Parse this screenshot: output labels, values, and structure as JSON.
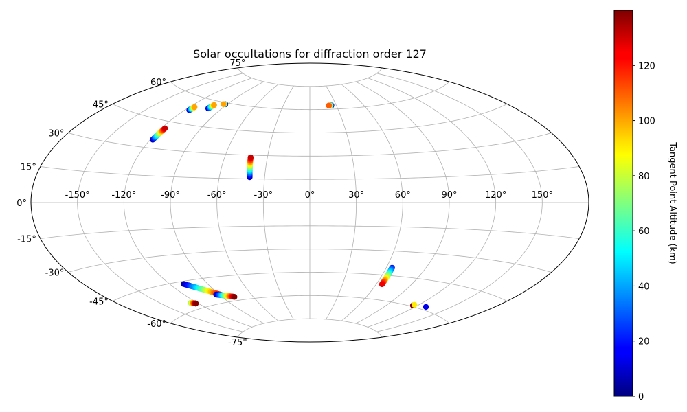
{
  "chart_data": {
    "type": "scatter",
    "projection": "aitoff",
    "title": "Solar occultations for diffraction order 127",
    "x_ticks": [
      "-150°",
      "-120°",
      "-90°",
      "-60°",
      "-30°",
      "0°",
      "30°",
      "60°",
      "90°",
      "120°",
      "150°"
    ],
    "x_tick_values": [
      -150,
      -120,
      -90,
      -60,
      -30,
      0,
      30,
      60,
      90,
      120,
      150
    ],
    "y_ticks": [
      "-75°",
      "-60°",
      "-45°",
      "-30°",
      "-15°",
      "0°",
      "15°",
      "30°",
      "45°",
      "60°",
      "75°"
    ],
    "y_tick_values": [
      -75,
      -60,
      -45,
      -30,
      -15,
      0,
      15,
      30,
      45,
      60,
      75
    ],
    "grid": true,
    "colorbar": {
      "label": "Tangent Point Altitude (km)",
      "min": 0,
      "max": 140,
      "ticks": [
        "0",
        "20",
        "40",
        "60",
        "80",
        "100",
        "120"
      ],
      "tick_values": [
        0,
        20,
        40,
        60,
        80,
        100,
        120
      ],
      "colormap": "jet"
    },
    "tracks": [
      {
        "lon": [
          -118.2,
          -117.3
        ],
        "lat": [
          34.5,
          41.2
        ],
        "alt": [
          5,
          130
        ]
      },
      {
        "lon": [
          -116.3,
          -115.6
        ],
        "lat": [
          52.5,
          54.5
        ],
        "alt": [
          5,
          100
        ]
      },
      {
        "lon": [
          -102.3,
          -101.2
        ],
        "lat": [
          55.3,
          57.6
        ],
        "alt": [
          5,
          100
        ]
      },
      {
        "lon": [
          -91.8,
          -93.8
        ],
        "lat": [
          59.1,
          59.0
        ],
        "alt": [
          5,
          100
        ]
      },
      {
        "lon": [
          -39.9,
          -41.8
        ],
        "lat": [
          16.1,
          28.6
        ],
        "alt": [
          5,
          130
        ]
      },
      {
        "lon": [
          24.5,
          21.6
        ],
        "lat": [
          62.4,
          62.4
        ],
        "alt": [
          5,
          110
        ]
      },
      {
        "lon": [
          -109.2,
          -88.9
        ],
        "lat": [
          -46.5,
          -55.4
        ],
        "alt": [
          5,
          130
        ]
      },
      {
        "lon": [
          -92.8,
          -78.4
        ],
        "lat": [
          -54.9,
          -57.7
        ],
        "alt": [
          5,
          139
        ]
      },
      {
        "lon": [
          -125.6,
          -122.2
        ],
        "lat": [
          -56.3,
          -57.2
        ],
        "alt": [
          70,
          139
        ]
      },
      {
        "lon": [
          64.4,
          65.0
        ],
        "lat": [
          -40.2,
          -50.6
        ],
        "alt": [
          20,
          125
        ]
      }
    ],
    "points": [
      {
        "lon": 115.7,
        "lat": -59.4,
        "alt": 140
      },
      {
        "lon": 115.9,
        "lat": -58.9,
        "alt": 90
      },
      {
        "lon": 129.4,
        "lat": -58.4,
        "alt": 15
      }
    ]
  }
}
